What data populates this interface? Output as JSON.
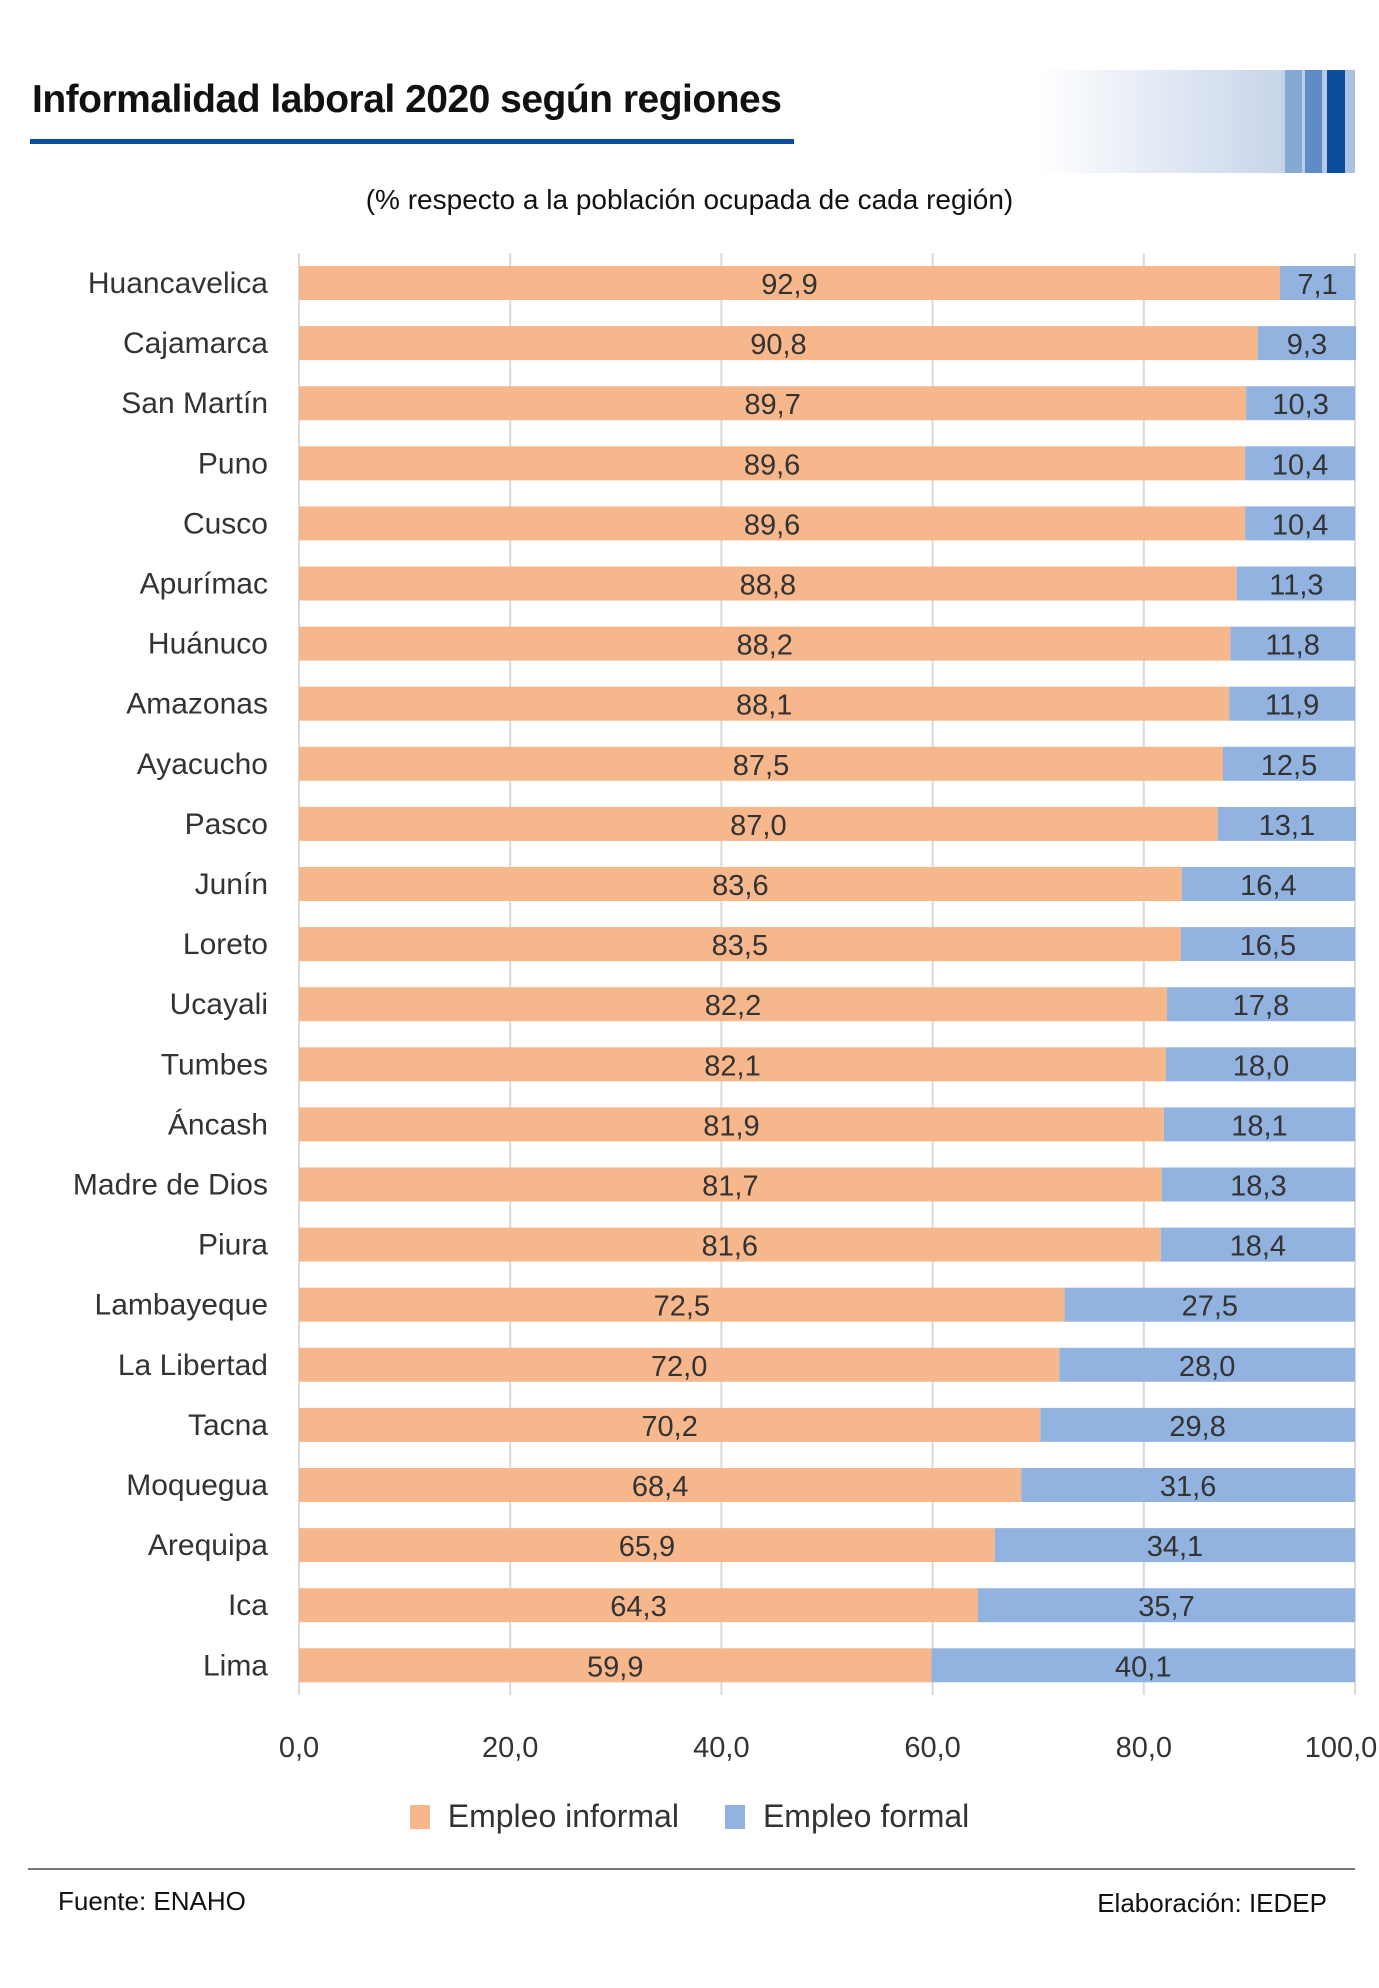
{
  "header": {
    "title": "Informalidad laboral 2020 según regiones",
    "subtitle": "(% respecto a la población ocupada de cada región)"
  },
  "colors": {
    "informal": "#F7B78C",
    "formal": "#92B2DF",
    "accent": "#0B4F9C",
    "grid": "#d9d9d9"
  },
  "chart_data": {
    "type": "bar",
    "orientation": "horizontal",
    "stacked": true,
    "title": "Informalidad laboral 2020 según regiones",
    "subtitle": "(% respecto a la población ocupada de cada región)",
    "categories": [
      "Huancavelica",
      "Cajamarca",
      "San Martín",
      "Puno",
      "Cusco",
      "Apurímac",
      "Huánuco",
      "Amazonas",
      "Ayacucho",
      "Pasco",
      "Junín",
      "Loreto",
      "Ucayali",
      "Tumbes",
      "Áncash",
      "Madre de Dios",
      "Piura",
      "Lambayeque",
      "La Libertad",
      "Tacna",
      "Moquegua",
      "Arequipa",
      "Ica",
      "Lima"
    ],
    "series": [
      {
        "name": "Empleo informal",
        "values": [
          92.9,
          90.8,
          89.7,
          89.6,
          89.6,
          88.8,
          88.2,
          88.1,
          87.5,
          87.0,
          83.6,
          83.5,
          82.2,
          82.1,
          81.9,
          81.7,
          81.6,
          72.5,
          72.0,
          70.2,
          68.4,
          65.9,
          64.3,
          59.9
        ]
      },
      {
        "name": "Empleo formal",
        "values": [
          7.1,
          9.3,
          10.3,
          10.4,
          10.4,
          11.3,
          11.8,
          11.9,
          12.5,
          13.1,
          16.4,
          16.5,
          17.8,
          18.0,
          18.1,
          18.3,
          18.4,
          27.5,
          28.0,
          29.8,
          31.6,
          34.1,
          35.7,
          40.1
        ]
      }
    ],
    "xlim": [
      0,
      100
    ],
    "xticks": [
      "0,0",
      "20,0",
      "40,0",
      "60,0",
      "80,0",
      "100,0"
    ],
    "grid": true,
    "legend": "bottom"
  },
  "legend": {
    "informal": "Empleo informal",
    "formal": "Empleo formal"
  },
  "footer": {
    "source": "Fuente: ENAHO",
    "credit": "Elaboración: IEDEP"
  }
}
